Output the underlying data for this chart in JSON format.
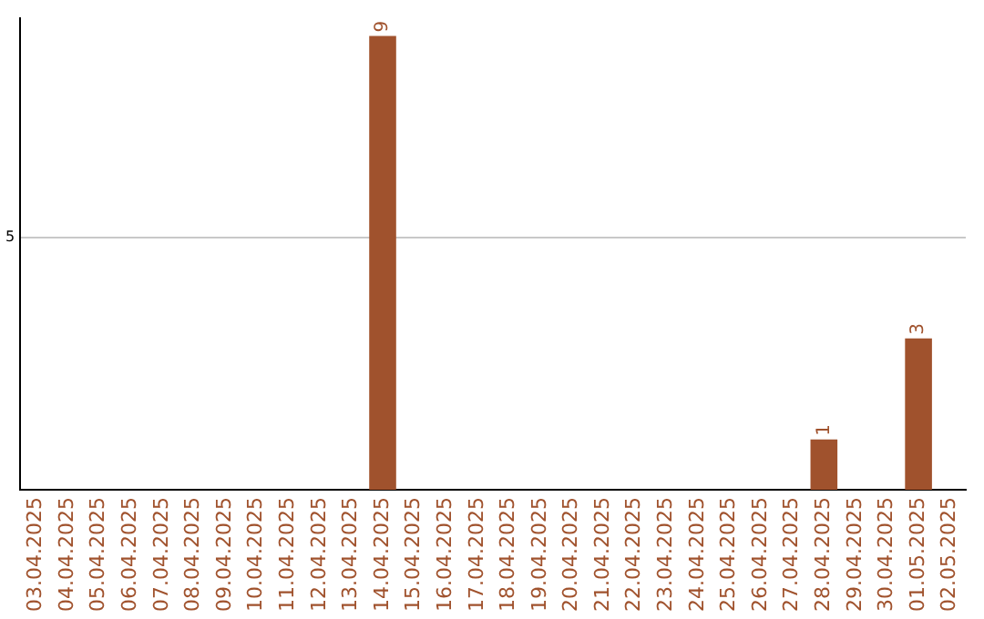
{
  "chart_data": {
    "type": "bar",
    "categories": [
      "03.04.2025",
      "04.04.2025",
      "05.04.2025",
      "06.04.2025",
      "07.04.2025",
      "08.04.2025",
      "09.04.2025",
      "10.04.2025",
      "11.04.2025",
      "12.04.2025",
      "13.04.2025",
      "14.04.2025",
      "15.04.2025",
      "16.04.2025",
      "17.04.2025",
      "18.04.2025",
      "19.04.2025",
      "20.04.2025",
      "21.04.2025",
      "22.04.2025",
      "23.04.2025",
      "24.04.2025",
      "25.04.2025",
      "26.04.2025",
      "27.04.2025",
      "28.04.2025",
      "29.04.2025",
      "30.04.2025",
      "01.05.2025",
      "02.05.2025"
    ],
    "values": [
      0,
      0,
      0,
      0,
      0,
      0,
      0,
      0,
      0,
      0,
      0,
      9,
      0,
      0,
      0,
      0,
      0,
      0,
      0,
      0,
      0,
      0,
      0,
      0,
      0,
      1,
      0,
      0,
      3,
      0
    ],
    "value_labels": [
      null,
      null,
      null,
      null,
      null,
      null,
      null,
      null,
      null,
      null,
      null,
      "9",
      null,
      null,
      null,
      null,
      null,
      null,
      null,
      null,
      null,
      null,
      null,
      null,
      null,
      "1",
      null,
      null,
      "3",
      null
    ],
    "color": "#a0522d",
    "ylim": [
      0,
      9.35
    ],
    "yticks": [
      5
    ],
    "grid": "y"
  }
}
